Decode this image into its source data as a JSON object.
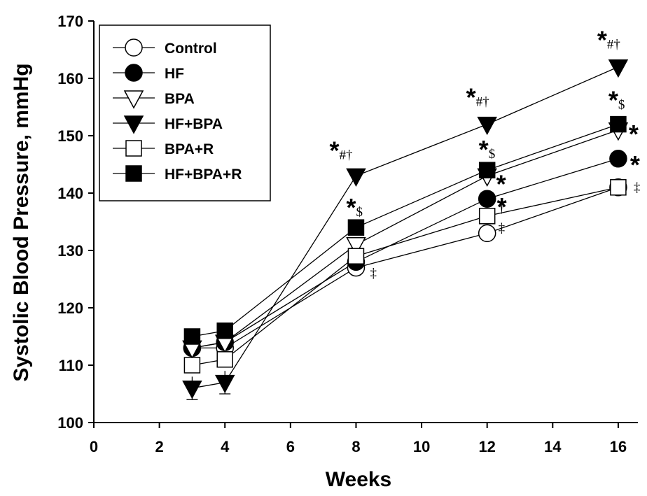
{
  "chart_data": {
    "type": "line",
    "title": "",
    "xlabel": "Weeks",
    "ylabel": "Systolic Blood Pressure, mmHg",
    "xlim": [
      0,
      16.6
    ],
    "ylim": [
      100,
      170
    ],
    "xticks": [
      "0",
      "2",
      "4",
      "6",
      "8",
      "10",
      "12",
      "14",
      "16"
    ],
    "yticks": [
      "100",
      "110",
      "120",
      "130",
      "140",
      "150",
      "160",
      "170"
    ],
    "x": [
      3,
      4,
      8,
      12,
      16
    ],
    "grid": false,
    "legend_position": "top-left",
    "series": [
      {
        "name": "Control",
        "marker": "circle",
        "fill": "open",
        "values": [
          113,
          113,
          127,
          133,
          141
        ]
      },
      {
        "name": "HF",
        "marker": "circle",
        "fill": "filled",
        "values": [
          113,
          114,
          128,
          139,
          146
        ]
      },
      {
        "name": "BPA",
        "marker": "triangle-down",
        "fill": "open",
        "values": [
          113,
          114,
          131,
          143,
          151
        ]
      },
      {
        "name": "HF+BPA",
        "marker": "triangle-down",
        "fill": "filled",
        "values": [
          106,
          107,
          143,
          152,
          162
        ]
      },
      {
        "name": "BPA+R",
        "marker": "square",
        "fill": "open",
        "values": [
          110,
          111,
          129,
          136,
          141
        ]
      },
      {
        "name": "HF+BPA+R",
        "marker": "square",
        "fill": "filled",
        "values": [
          115,
          116,
          134,
          144,
          152
        ]
      }
    ],
    "error_bars": [
      {
        "series": "HF+BPA",
        "x": 3,
        "low": 104,
        "high": 108
      },
      {
        "series": "HF+BPA",
        "x": 4,
        "low": 105,
        "high": 109
      }
    ],
    "annotations": [
      {
        "x": 8,
        "y": 143,
        "text": "*#†"
      },
      {
        "x": 8,
        "y": 134,
        "text": "*$"
      },
      {
        "x": 8,
        "y": 128,
        "text": "‡"
      },
      {
        "x": 12,
        "y": 152,
        "text": "*#†"
      },
      {
        "x": 12,
        "y": 144,
        "text": "*$"
      },
      {
        "x": 12,
        "y": 143,
        "text": "*"
      },
      {
        "x": 12,
        "y": 139,
        "text": "*"
      },
      {
        "x": 12,
        "y": 136,
        "text": "†"
      },
      {
        "x": 12,
        "y": 135,
        "text": "‡"
      },
      {
        "x": 16,
        "y": 162,
        "text": "*#†"
      },
      {
        "x": 16,
        "y": 152,
        "text": "*$"
      },
      {
        "x": 16,
        "y": 151,
        "text": "*"
      },
      {
        "x": 16,
        "y": 146,
        "text": "*"
      },
      {
        "x": 16,
        "y": 141,
        "text": "‡"
      }
    ]
  }
}
